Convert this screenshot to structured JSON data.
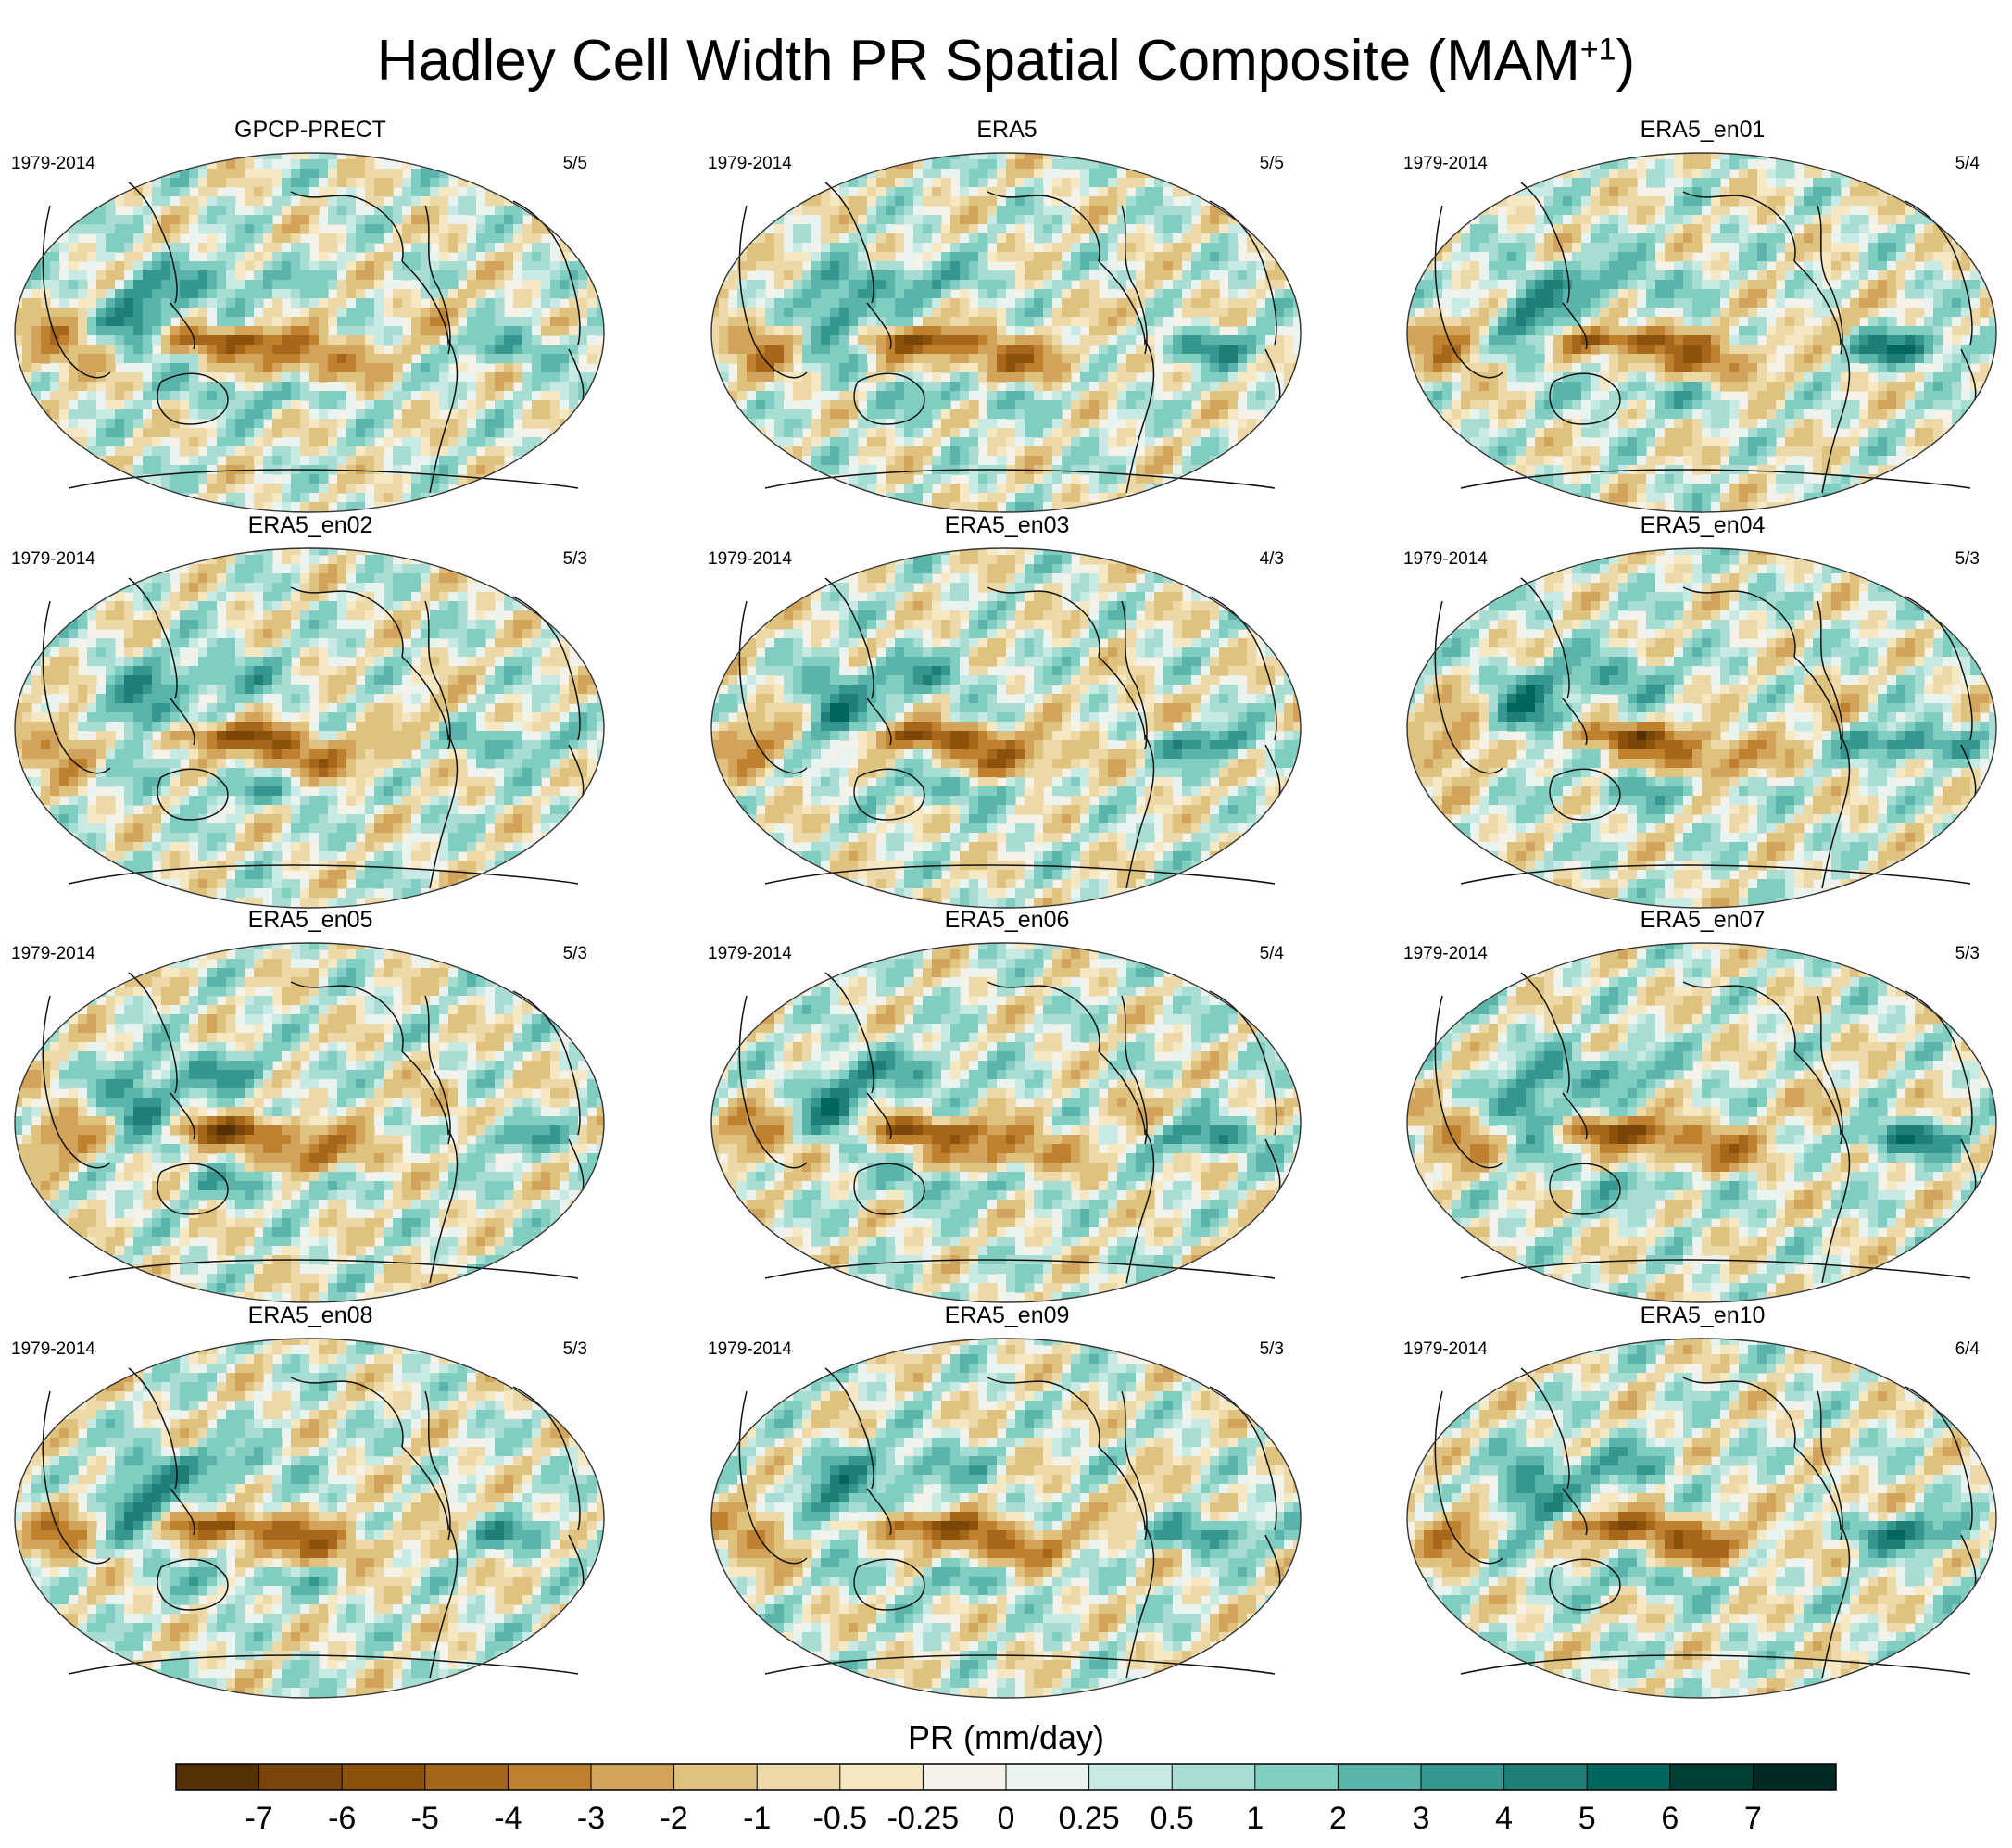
{
  "title_main": "Hadley Cell Width PR Spatial Composite (MAM",
  "title_sup": "+1",
  "title_end": ")",
  "colorbar": {
    "label": "PR (mm/day)",
    "levels": [
      "-7",
      "-6",
      "-5",
      "-4",
      "-3",
      "-2",
      "-1",
      "-0.5",
      "-0.25",
      "0",
      "0.25",
      "0.5",
      "1",
      "2",
      "3",
      "4",
      "5",
      "6",
      "7"
    ],
    "colors": [
      "#543005",
      "#7a4508",
      "#8c510a",
      "#a6661b",
      "#bf812d",
      "#d2a35b",
      "#dfc27d",
      "#ecd9a7",
      "#f6e8c3",
      "#f5f2ea",
      "#e9f4f1",
      "#c7eae5",
      "#a8ddd3",
      "#80cdc1",
      "#5ab4a9",
      "#35978f",
      "#1f7f76",
      "#01665e",
      "#003f35",
      "#002a23"
    ]
  },
  "chart_data": {
    "type": "heatmap",
    "title": "Hadley Cell Width PR Spatial Composite (MAM+1)",
    "variable": "PR (mm/day)",
    "color_levels": [
      -7,
      -6,
      -5,
      -4,
      -3,
      -2,
      -1,
      -0.5,
      -0.25,
      0,
      0.25,
      0.5,
      1,
      2,
      3,
      4,
      5,
      6,
      7
    ],
    "panels": [
      {
        "name": "GPCP-PRECT",
        "period": "1979-2014",
        "count": "5/5",
        "variant": 0
      },
      {
        "name": "ERA5",
        "period": "1979-2014",
        "count": "5/5",
        "variant": 1
      },
      {
        "name": "ERA5_en01",
        "period": "1979-2014",
        "count": "5/4",
        "variant": 2
      },
      {
        "name": "ERA5_en02",
        "period": "1979-2014",
        "count": "5/3",
        "variant": 3
      },
      {
        "name": "ERA5_en03",
        "period": "1979-2014",
        "count": "4/3",
        "variant": 4
      },
      {
        "name": "ERA5_en04",
        "period": "1979-2014",
        "count": "5/3",
        "variant": 5
      },
      {
        "name": "ERA5_en05",
        "period": "1979-2014",
        "count": "5/3",
        "variant": 6
      },
      {
        "name": "ERA5_en06",
        "period": "1979-2014",
        "count": "5/4",
        "variant": 7
      },
      {
        "name": "ERA5_en07",
        "period": "1979-2014",
        "count": "5/3",
        "variant": 8
      },
      {
        "name": "ERA5_en08",
        "period": "1979-2014",
        "count": "5/3",
        "variant": 9
      },
      {
        "name": "ERA5_en09",
        "period": "1979-2014",
        "count": "5/3",
        "variant": 10
      },
      {
        "name": "ERA5_en10",
        "period": "1979-2014",
        "count": "6/4",
        "variant": 11
      }
    ]
  }
}
